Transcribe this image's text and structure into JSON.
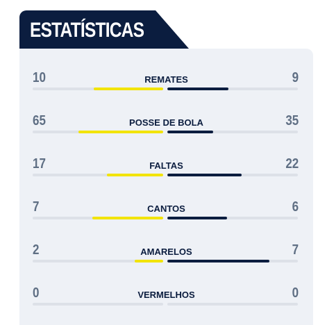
{
  "header": {
    "title": "ESTATÍSTICAS"
  },
  "colors": {
    "home": "#f2e404",
    "away": "#0b1d3f",
    "track": "#dde1e8",
    "navy": "#0b1d3f"
  },
  "stats": [
    {
      "label": "REMATES",
      "home": "10",
      "away": "9",
      "home_share": 0.53,
      "away_share": 0.47
    },
    {
      "label": "POSSE DE BOLA",
      "home": "65",
      "away": "35",
      "home_share": 0.65,
      "away_share": 0.35
    },
    {
      "label": "FALTAS",
      "home": "17",
      "away": "22",
      "home_share": 0.43,
      "away_share": 0.57
    },
    {
      "label": "CANTOS",
      "home": "7",
      "away": "6",
      "home_share": 0.54,
      "away_share": 0.46
    },
    {
      "label": "AMARELOS",
      "home": "2",
      "away": "7",
      "home_share": 0.22,
      "away_share": 0.78
    },
    {
      "label": "VERMELHOS",
      "home": "0",
      "away": "0",
      "home_share": 0,
      "away_share": 0
    }
  ]
}
